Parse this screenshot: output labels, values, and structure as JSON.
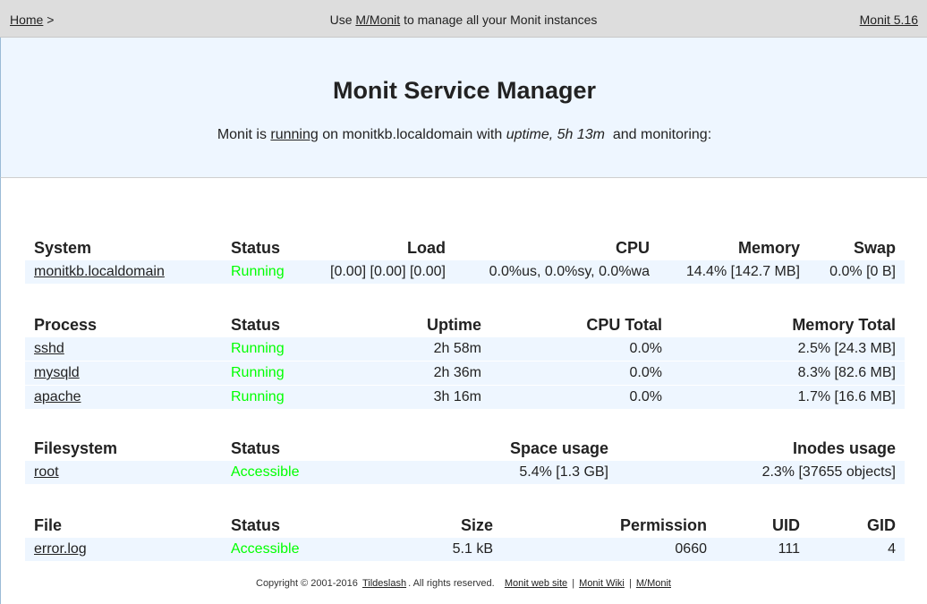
{
  "nav": {
    "home": "Home",
    "home_sep": ">",
    "center_pre": "Use",
    "center_link": "M/Monit",
    "center_post": "to manage all your Monit instances",
    "version": "Monit 5.16"
  },
  "header": {
    "title": "Monit Service Manager",
    "pre": "Monit is",
    "running": "running",
    "mid": "on monitkb.localdomain with",
    "uptime": "uptime, 5h 13m",
    "post": "and monitoring:"
  },
  "system": {
    "headers": [
      "System",
      "Status",
      "Load",
      "CPU",
      "Memory",
      "Swap"
    ],
    "rows": [
      {
        "name": "monitkb.localdomain",
        "status": "Running",
        "load": "[0.00] [0.00] [0.00]",
        "cpu": "0.0%us, 0.0%sy, 0.0%wa",
        "memory": "14.4% [142.7 MB]",
        "swap": "0.0% [0 B]"
      }
    ]
  },
  "process": {
    "headers": [
      "Process",
      "Status",
      "Uptime",
      "CPU Total",
      "Memory Total"
    ],
    "rows": [
      {
        "name": "sshd",
        "status": "Running",
        "uptime": "2h 58m",
        "cpu": "0.0%",
        "memory": "2.5% [24.3 MB]"
      },
      {
        "name": "mysqld",
        "status": "Running",
        "uptime": "2h 36m",
        "cpu": "0.0%",
        "memory": "8.3% [82.6 MB]"
      },
      {
        "name": "apache",
        "status": "Running",
        "uptime": "3h 16m",
        "cpu": "0.0%",
        "memory": "1.7% [16.6 MB]"
      }
    ]
  },
  "filesystem": {
    "headers": [
      "Filesystem",
      "Status",
      "Space usage",
      "Inodes usage"
    ],
    "rows": [
      {
        "name": "root",
        "status": "Accessible",
        "space": "5.4% [1.3 GB]",
        "inodes": "2.3% [37655 objects]"
      }
    ]
  },
  "file": {
    "headers": [
      "File",
      "Status",
      "Size",
      "Permission",
      "UID",
      "GID"
    ],
    "rows": [
      {
        "name": "error.log",
        "status": "Accessible",
        "size": "5.1 kB",
        "permission": "0660",
        "uid": "111",
        "gid": "4"
      }
    ]
  },
  "footer": {
    "copyright_pre": "Copyright © 2001-2016",
    "company": "Tildeslash",
    "rights": ". All rights reserved.",
    "link1": "Monit web site",
    "link2": "Monit Wiki",
    "link3": "M/Monit",
    "sep": "|"
  },
  "colors": {
    "ok": "#00ff00",
    "header_bg": "#eef6ff",
    "nav_bg": "#dddddd"
  }
}
